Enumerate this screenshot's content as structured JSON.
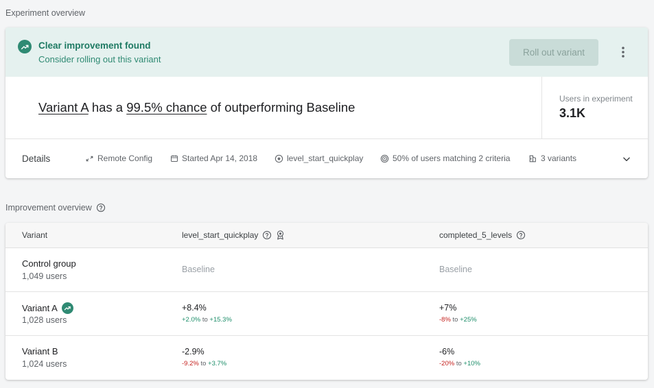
{
  "section1_title": "Experiment overview",
  "banner": {
    "title": "Clear improvement found",
    "subtitle": "Consider rolling out this variant",
    "rollout_label": "Roll out variant",
    "icon": "trending-up-icon",
    "color": "#2f8a73"
  },
  "headline": {
    "variant": "Variant A",
    "mid1": " has a ",
    "chance": "99.5% chance",
    "mid2": " of outperforming Baseline"
  },
  "users": {
    "label": "Users in experiment",
    "value": "3.1K"
  },
  "details": {
    "label": "Details",
    "items": [
      {
        "icon": "remote-config-icon",
        "text": "Remote Config"
      },
      {
        "icon": "calendar-icon",
        "text": "Started Apr 14, 2018"
      },
      {
        "icon": "star-circle-icon",
        "text": "level_start_quickplay"
      },
      {
        "icon": "target-icon",
        "text": "50% of users matching 2 criteria"
      },
      {
        "icon": "variants-icon",
        "text": "3 variants"
      }
    ]
  },
  "section2_title": "Improvement overview",
  "table": {
    "headers": [
      "Variant",
      "level_start_quickplay",
      "completed_5_levels"
    ],
    "rows": [
      {
        "name": "Control group",
        "users": "1,049 users",
        "m1": {
          "baseline": "Baseline"
        },
        "m2": {
          "baseline": "Baseline"
        }
      },
      {
        "name": "Variant A",
        "users": "1,028 users",
        "m1": {
          "value": "+8.4%",
          "low": "+2.0%",
          "to": "to",
          "high": "+15.3%"
        },
        "m2": {
          "value": "+7%",
          "low": "-8%",
          "to": "to",
          "high": "+25%"
        }
      },
      {
        "name": "Variant B",
        "users": "1,024 users",
        "m1": {
          "value": "-2.9%",
          "low": "-9.2%",
          "to": "to",
          "high": "+3.7%"
        },
        "m2": {
          "value": "-6%",
          "low": "-20%",
          "to": "to",
          "high": "+10%"
        }
      }
    ]
  }
}
